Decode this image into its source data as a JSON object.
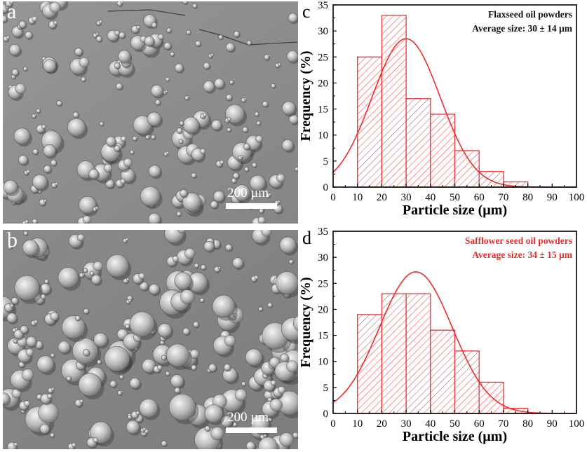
{
  "figure": {
    "panel_a": {
      "letter": "a",
      "scale_label": "200 µm"
    },
    "panel_b": {
      "letter": "b",
      "scale_label": "200 µm"
    }
  },
  "colors": {
    "bars": "#e8353a",
    "curve": "#ee2c2c",
    "annotation_c": "#111111",
    "annotation_d": "#ee2c2c"
  },
  "chart_data": [
    {
      "panel": "c",
      "type": "bar",
      "title": "",
      "annotation": [
        "Flaxseed oil powders",
        "Average size: 30 ± 14 µm"
      ],
      "xlabel": "Particle size (µm)",
      "ylabel": "Frequency (%)",
      "xlim": [
        0,
        100
      ],
      "ylim": [
        0,
        35
      ],
      "xticks": [
        0,
        10,
        20,
        30,
        40,
        50,
        60,
        70,
        80,
        90,
        100
      ],
      "yticks": [
        0,
        5,
        10,
        15,
        20,
        25,
        30,
        35
      ],
      "bins": [
        [
          10,
          20
        ],
        [
          20,
          30
        ],
        [
          30,
          40
        ],
        [
          40,
          50
        ],
        [
          50,
          60
        ],
        [
          60,
          70
        ],
        [
          70,
          80
        ]
      ],
      "values": [
        25,
        33,
        17,
        14,
        7,
        3,
        1
      ],
      "fit": {
        "type": "gaussian",
        "mean": 30,
        "sd": 14,
        "peak": 28.5
      },
      "grid": false,
      "legend": "none"
    },
    {
      "panel": "d",
      "type": "bar",
      "title": "",
      "annotation": [
        "Safflower seed oil powders",
        "Average size: 34 ± 15 µm"
      ],
      "xlabel": "Particle size (µm)",
      "ylabel": "Frequency (%)",
      "xlim": [
        0,
        100
      ],
      "ylim": [
        0,
        35
      ],
      "xticks": [
        0,
        10,
        20,
        30,
        40,
        50,
        60,
        70,
        80,
        90,
        100
      ],
      "yticks": [
        0,
        5,
        10,
        15,
        20,
        25,
        30,
        35
      ],
      "bins": [
        [
          10,
          20
        ],
        [
          20,
          30
        ],
        [
          30,
          40
        ],
        [
          40,
          50
        ],
        [
          50,
          60
        ],
        [
          60,
          70
        ],
        [
          70,
          80
        ]
      ],
      "values": [
        19,
        23,
        23,
        16,
        12,
        6,
        1
      ],
      "fit": {
        "type": "gaussian",
        "mean": 34,
        "sd": 15,
        "peak": 27.2
      },
      "grid": false,
      "legend": "none"
    }
  ]
}
